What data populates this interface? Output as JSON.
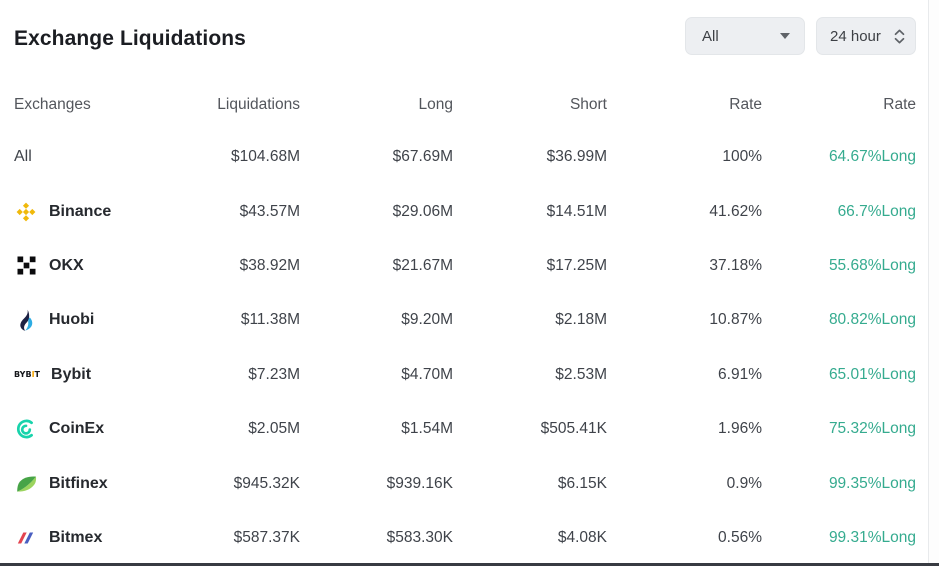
{
  "colors": {
    "accent_green": "#35ab8f",
    "binance_gold": "#F0B90B",
    "okx_black": "#0b0b0d",
    "huobi_dark": "#1c2143",
    "huobi_light": "#2dace3",
    "bybit_gold": "#f7a600",
    "coinex_teal": "#18d3ab",
    "bitfinex_dark": "#47a447",
    "bitfinex_light": "#9bd45e",
    "bitmex_red": "#e4444f",
    "bitmex_blue": "#4a5fc1"
  },
  "header": {
    "title": "Exchange Liquidations",
    "filter_dropdown": {
      "value": "All"
    },
    "time_dropdown": {
      "value": "24 hour"
    }
  },
  "table": {
    "columns": [
      "Exchanges",
      "Liquidations",
      "Long",
      "Short",
      "Rate",
      "Rate"
    ],
    "rows": [
      {
        "exchange": "All",
        "icon": "none",
        "liquidations": "$104.68M",
        "long": "$67.69M",
        "short": "$36.99M",
        "rate": "100%",
        "long_rate": "64.67%Long"
      },
      {
        "exchange": "Binance",
        "icon": "binance-icon",
        "liquidations": "$43.57M",
        "long": "$29.06M",
        "short": "$14.51M",
        "rate": "41.62%",
        "long_rate": "66.7%Long"
      },
      {
        "exchange": "OKX",
        "icon": "okx-icon",
        "liquidations": "$38.92M",
        "long": "$21.67M",
        "short": "$17.25M",
        "rate": "37.18%",
        "long_rate": "55.68%Long"
      },
      {
        "exchange": "Huobi",
        "icon": "huobi-icon",
        "liquidations": "$11.38M",
        "long": "$9.20M",
        "short": "$2.18M",
        "rate": "10.87%",
        "long_rate": "80.82%Long"
      },
      {
        "exchange": "Bybit",
        "icon": "bybit-icon",
        "liquidations": "$7.23M",
        "long": "$4.70M",
        "short": "$2.53M",
        "rate": "6.91%",
        "long_rate": "65.01%Long"
      },
      {
        "exchange": "CoinEx",
        "icon": "coinex-icon",
        "liquidations": "$2.05M",
        "long": "$1.54M",
        "short": "$505.41K",
        "rate": "1.96%",
        "long_rate": "75.32%Long"
      },
      {
        "exchange": "Bitfinex",
        "icon": "bitfinex-icon",
        "liquidations": "$945.32K",
        "long": "$939.16K",
        "short": "$6.15K",
        "rate": "0.9%",
        "long_rate": "99.35%Long"
      },
      {
        "exchange": "Bitmex",
        "icon": "bitmex-icon",
        "liquidations": "$587.37K",
        "long": "$583.30K",
        "short": "$4.08K",
        "rate": "0.56%",
        "long_rate": "99.31%Long"
      }
    ]
  }
}
